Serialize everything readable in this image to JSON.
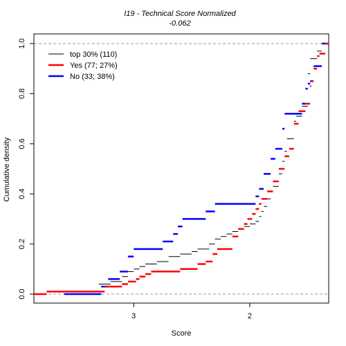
{
  "chart_data": {
    "type": "step",
    "title": "I19 - Technical Score  Normalized",
    "subtitle": "-0.062",
    "xlabel": "Score",
    "ylabel": "Cumulative density",
    "x_axis_reversed": true,
    "xlim": [
      3.86,
      1.32
    ],
    "ylim": [
      0,
      1
    ],
    "x_ticks": [
      3,
      2
    ],
    "y_ticks": [
      0.0,
      0.2,
      0.4,
      0.6,
      0.8,
      1.0
    ],
    "y_tick_labels": [
      "0.0",
      "0.2",
      "0.4",
      "0.6",
      "0.8",
      "1.0"
    ],
    "reference_lines": [
      0,
      1
    ],
    "legend_position": "top-left",
    "series": [
      {
        "name": "top 30% (110)",
        "color": "#000000",
        "points": [
          [
            3.3,
            0.04
          ],
          [
            3.2,
            0.05
          ],
          [
            3.1,
            0.07
          ],
          [
            3.05,
            0.09
          ],
          [
            3.0,
            0.1
          ],
          [
            2.95,
            0.11
          ],
          [
            2.9,
            0.12
          ],
          [
            2.8,
            0.13
          ],
          [
            2.7,
            0.15
          ],
          [
            2.6,
            0.16
          ],
          [
            2.5,
            0.17
          ],
          [
            2.45,
            0.18
          ],
          [
            2.35,
            0.2
          ],
          [
            2.3,
            0.22
          ],
          [
            2.25,
            0.23
          ],
          [
            2.2,
            0.24
          ],
          [
            2.15,
            0.25
          ],
          [
            2.1,
            0.26
          ],
          [
            2.05,
            0.27
          ],
          [
            2.0,
            0.28
          ],
          [
            1.95,
            0.29
          ],
          [
            1.92,
            0.31
          ],
          [
            1.9,
            0.33
          ],
          [
            1.88,
            0.35
          ],
          [
            1.85,
            0.38
          ],
          [
            1.82,
            0.41
          ],
          [
            1.8,
            0.43
          ],
          [
            1.75,
            0.48
          ],
          [
            1.72,
            0.53
          ],
          [
            1.7,
            0.57
          ],
          [
            1.68,
            0.62
          ],
          [
            1.62,
            0.69
          ],
          [
            1.6,
            0.71
          ],
          [
            1.55,
            0.75
          ],
          [
            1.5,
            0.88
          ],
          [
            1.48,
            0.94
          ],
          [
            1.42,
            0.97
          ],
          [
            1.38,
            1.0
          ]
        ]
      },
      {
        "name": "Yes (77; 27%)",
        "color": "#ff0000",
        "points": [
          [
            3.86,
            0.0
          ],
          [
            3.75,
            0.01
          ],
          [
            3.25,
            0.03
          ],
          [
            3.1,
            0.04
          ],
          [
            3.05,
            0.05
          ],
          [
            2.98,
            0.06
          ],
          [
            2.95,
            0.07
          ],
          [
            2.9,
            0.08
          ],
          [
            2.85,
            0.09
          ],
          [
            2.6,
            0.1
          ],
          [
            2.45,
            0.12
          ],
          [
            2.38,
            0.13
          ],
          [
            2.32,
            0.16
          ],
          [
            2.28,
            0.18
          ],
          [
            2.15,
            0.23
          ],
          [
            2.1,
            0.26
          ],
          [
            2.05,
            0.28
          ],
          [
            2.02,
            0.3
          ],
          [
            1.98,
            0.32
          ],
          [
            1.95,
            0.34
          ],
          [
            1.92,
            0.36
          ],
          [
            1.9,
            0.38
          ],
          [
            1.85,
            0.41
          ],
          [
            1.8,
            0.45
          ],
          [
            1.75,
            0.5
          ],
          [
            1.7,
            0.55
          ],
          [
            1.66,
            0.58
          ],
          [
            1.62,
            0.68
          ],
          [
            1.58,
            0.73
          ],
          [
            1.52,
            0.76
          ],
          [
            1.48,
            0.83
          ],
          [
            1.47,
            0.85
          ],
          [
            1.45,
            0.9
          ],
          [
            1.42,
            0.95
          ],
          [
            1.4,
            0.96
          ],
          [
            1.35,
            1.0
          ]
        ]
      },
      {
        "name": "No (33; 38%)",
        "color": "#0000ff",
        "points": [
          [
            3.6,
            0.0
          ],
          [
            3.28,
            0.03
          ],
          [
            3.22,
            0.06
          ],
          [
            3.12,
            0.09
          ],
          [
            3.05,
            0.15
          ],
          [
            3.0,
            0.18
          ],
          [
            2.75,
            0.21
          ],
          [
            2.66,
            0.24
          ],
          [
            2.62,
            0.27
          ],
          [
            2.58,
            0.3
          ],
          [
            2.38,
            0.33
          ],
          [
            2.3,
            0.36
          ],
          [
            1.95,
            0.39
          ],
          [
            1.92,
            0.42
          ],
          [
            1.88,
            0.48
          ],
          [
            1.82,
            0.54
          ],
          [
            1.78,
            0.58
          ],
          [
            1.72,
            0.66
          ],
          [
            1.7,
            0.72
          ],
          [
            1.55,
            0.76
          ],
          [
            1.52,
            0.82
          ],
          [
            1.5,
            0.84
          ],
          [
            1.48,
            0.85
          ],
          [
            1.45,
            0.91
          ],
          [
            1.38,
            1.0
          ]
        ]
      }
    ]
  }
}
